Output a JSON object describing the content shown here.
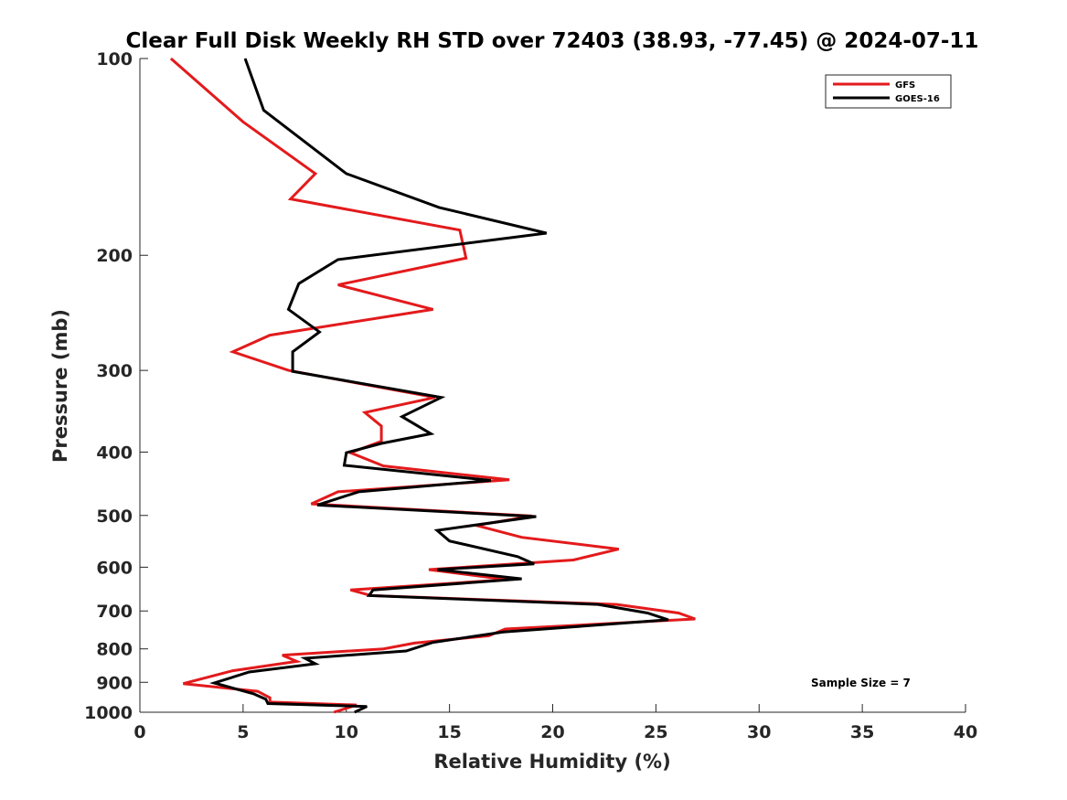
{
  "chart_data": {
    "type": "line",
    "title": "Clear Full Disk Weekly RH STD over 72403 (38.93, -77.45) @ 2024-07-11",
    "xlabel": "Relative Humidity (%)",
    "ylabel": "Pressure (mb)",
    "xlim": [
      0,
      40
    ],
    "ylim": [
      100,
      1000
    ],
    "yscale": "log",
    "y_reversed": true,
    "grid": false,
    "legend_position": "top-right",
    "x_ticks": [
      "0",
      "5",
      "10",
      "15",
      "20",
      "25",
      "30",
      "35",
      "40"
    ],
    "y_ticks": [
      "100",
      "200",
      "300",
      "400",
      "500",
      "600",
      "700",
      "800",
      "900",
      "1000"
    ],
    "annotation": "Sample Size = 7",
    "series": [
      {
        "name": "GFS",
        "color": "#e31a1c",
        "points": [
          [
            1.5,
            100
          ],
          [
            5.0,
            125
          ],
          [
            8.5,
            150
          ],
          [
            7.3,
            164
          ],
          [
            15.5,
            183
          ],
          [
            15.8,
            202
          ],
          [
            9.6,
            222
          ],
          [
            14.2,
            242
          ],
          [
            6.3,
            265
          ],
          [
            4.5,
            281
          ],
          [
            7.2,
            300
          ],
          [
            14.3,
            330
          ],
          [
            10.9,
            348
          ],
          [
            11.7,
            365
          ],
          [
            11.7,
            385
          ],
          [
            10.2,
            401
          ],
          [
            11.8,
            420
          ],
          [
            17.9,
            441
          ],
          [
            9.6,
            460
          ],
          [
            8.3,
            480
          ],
          [
            19.0,
            501
          ],
          [
            16.3,
            518
          ],
          [
            18.5,
            540
          ],
          [
            23.2,
            563
          ],
          [
            21.0,
            585
          ],
          [
            14.0,
            605
          ],
          [
            17.8,
            627
          ],
          [
            10.2,
            650
          ],
          [
            11.2,
            663
          ],
          [
            23.1,
            684
          ],
          [
            26.1,
            705
          ],
          [
            26.9,
            720
          ],
          [
            17.7,
            746
          ],
          [
            16.9,
            764
          ],
          [
            13.3,
            784
          ],
          [
            11.8,
            800
          ],
          [
            6.9,
            818
          ],
          [
            7.6,
            836
          ],
          [
            4.5,
            864
          ],
          [
            2.1,
            904
          ],
          [
            5.7,
            929
          ],
          [
            6.3,
            950
          ],
          [
            6.3,
            965
          ],
          [
            10.5,
            975
          ],
          [
            9.4,
            1000
          ]
        ]
      },
      {
        "name": "GOES-16",
        "color": "#000000",
        "points": [
          [
            5.1,
            100
          ],
          [
            6.0,
            120
          ],
          [
            10.0,
            150
          ],
          [
            14.5,
            169
          ],
          [
            19.7,
            185
          ],
          [
            9.6,
            203
          ],
          [
            7.7,
            221
          ],
          [
            7.2,
            242
          ],
          [
            8.7,
            262
          ],
          [
            7.4,
            281
          ],
          [
            7.4,
            301
          ],
          [
            14.6,
            330
          ],
          [
            12.7,
            353
          ],
          [
            14.1,
            375
          ],
          [
            11.7,
            388
          ],
          [
            10.0,
            401
          ],
          [
            9.9,
            419
          ],
          [
            17.0,
            442
          ],
          [
            10.6,
            460
          ],
          [
            8.6,
            482
          ],
          [
            19.2,
            502
          ],
          [
            14.4,
            527
          ],
          [
            15.0,
            547
          ],
          [
            18.3,
            578
          ],
          [
            19.1,
            593
          ],
          [
            14.4,
            605
          ],
          [
            18.5,
            625
          ],
          [
            11.3,
            650
          ],
          [
            11.1,
            663
          ],
          [
            22.2,
            684
          ],
          [
            24.6,
            705
          ],
          [
            25.6,
            722
          ],
          [
            17.6,
            754
          ],
          [
            14.2,
            782
          ],
          [
            12.9,
            806
          ],
          [
            8.0,
            827
          ],
          [
            8.5,
            843
          ],
          [
            5.3,
            868
          ],
          [
            3.6,
            902
          ],
          [
            5.5,
            937
          ],
          [
            6.1,
            955
          ],
          [
            6.2,
            970
          ],
          [
            11.0,
            980
          ],
          [
            10.4,
            1000
          ]
        ]
      }
    ]
  }
}
